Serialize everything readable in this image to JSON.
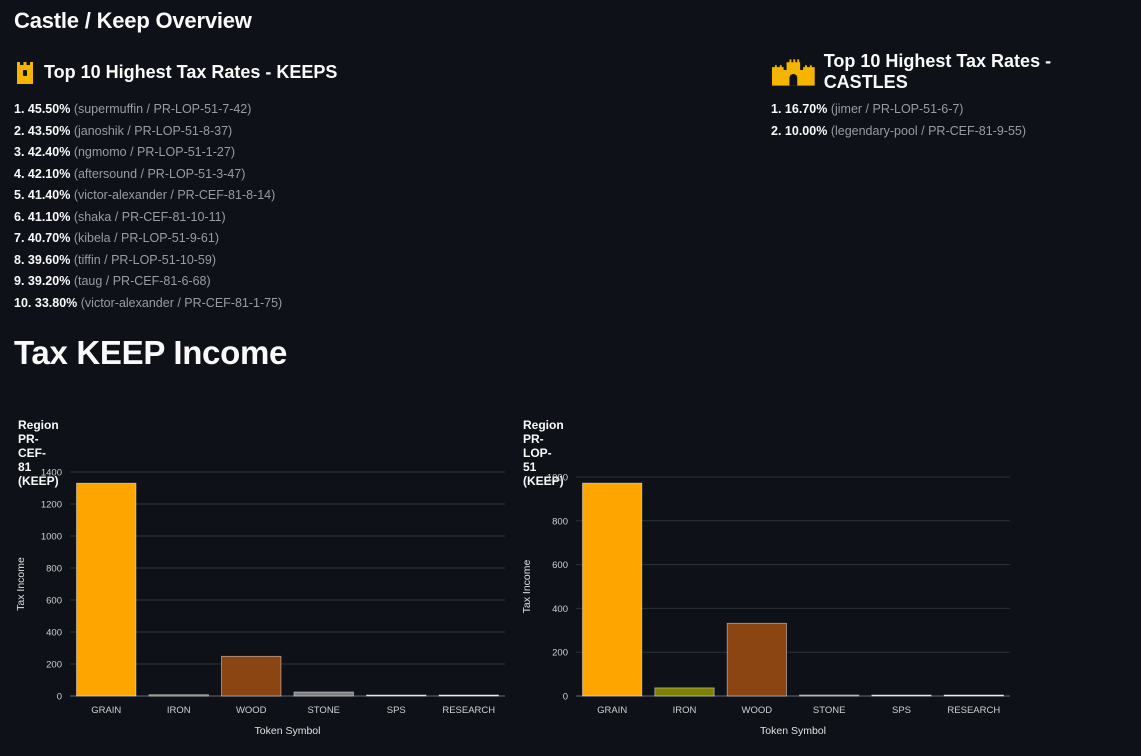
{
  "page_title": "Castle / Keep Overview",
  "keeps": {
    "title": "Top 10 Highest Tax Rates - KEEPS",
    "icon": "keep-tower-icon",
    "items": [
      {
        "rank": "1.",
        "rate": "45.50%",
        "detail": "(supermuffin / PR-LOP-51-7-42)"
      },
      {
        "rank": "2.",
        "rate": "43.50%",
        "detail": "(janoshik / PR-LOP-51-8-37)"
      },
      {
        "rank": "3.",
        "rate": "42.40%",
        "detail": "(ngmomo / PR-LOP-51-1-27)"
      },
      {
        "rank": "4.",
        "rate": "42.10%",
        "detail": "(aftersound / PR-LOP-51-3-47)"
      },
      {
        "rank": "5.",
        "rate": "41.40%",
        "detail": "(victor-alexander / PR-CEF-81-8-14)"
      },
      {
        "rank": "6.",
        "rate": "41.10%",
        "detail": "(shaka / PR-CEF-81-10-11)"
      },
      {
        "rank": "7.",
        "rate": "40.70%",
        "detail": "(kibela / PR-LOP-51-9-61)"
      },
      {
        "rank": "8.",
        "rate": "39.60%",
        "detail": "(tiffin / PR-LOP-51-10-59)"
      },
      {
        "rank": "9.",
        "rate": "39.20%",
        "detail": "(taug / PR-CEF-81-6-68)"
      },
      {
        "rank": "10.",
        "rate": "33.80%",
        "detail": "(victor-alexander / PR-CEF-81-1-75)"
      }
    ]
  },
  "castles": {
    "title": "Top 10 Highest Tax Rates - CASTLES",
    "icon": "castle-icon",
    "items": [
      {
        "rank": "1.",
        "rate": "16.70%",
        "detail": "(jimer / PR-LOP-51-6-7)"
      },
      {
        "rank": "2.",
        "rate": "10.00%",
        "detail": "(legendary-pool / PR-CEF-81-9-55)"
      }
    ]
  },
  "income_title": "Tax KEEP Income",
  "colors": {
    "background": "#0e1117",
    "icon_gold": "#f5b400",
    "GRAIN": "#ffa500",
    "IRON": "#808000",
    "WOOD": "#8b4513",
    "STONE": "#808080",
    "SPS": "#d3d3d3",
    "RESEARCH": "#e0e0e0"
  },
  "chart_data": [
    {
      "type": "bar",
      "title": "Region PR-CEF-81 (KEEP)",
      "categories": [
        "GRAIN",
        "IRON",
        "WOOD",
        "STONE",
        "SPS",
        "RESEARCH"
      ],
      "values": [
        1330,
        8,
        248,
        25,
        1,
        1
      ],
      "xlabel": "Token Symbol",
      "ylabel": "Tax Income",
      "ylim": [
        0,
        1400
      ],
      "yticks": [
        0,
        200,
        400,
        600,
        800,
        1000,
        1200,
        1400
      ],
      "grid": true
    },
    {
      "type": "bar",
      "title": "Region PR-LOP-51 (KEEP)",
      "categories": [
        "GRAIN",
        "IRON",
        "WOOD",
        "STONE",
        "SPS",
        "RESEARCH"
      ],
      "values": [
        972,
        37,
        332,
        4,
        1,
        2
      ],
      "xlabel": "Token Symbol",
      "ylabel": "Tax Income",
      "ylim": [
        0,
        1000
      ],
      "yticks": [
        0,
        200,
        400,
        600,
        800,
        1000
      ],
      "grid": true
    }
  ]
}
